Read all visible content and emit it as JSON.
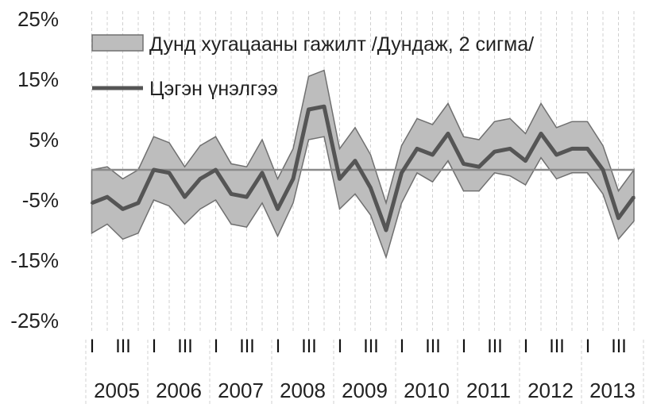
{
  "chart_data": {
    "type": "area",
    "title": "",
    "xlabel": "",
    "ylabel": "",
    "ylim": [
      -25,
      25
    ],
    "y_ticks": [
      "25%",
      "15%",
      "5%",
      "-5%",
      "-15%",
      "-25%"
    ],
    "y_tick_values": [
      25,
      15,
      5,
      -5,
      -15,
      -25
    ],
    "grid": "vertical dashed",
    "legend_position": "top-left",
    "quarter_labels": [
      "I",
      "III"
    ],
    "years": [
      "2005",
      "2006",
      "2007",
      "2008",
      "2009",
      "2010",
      "2011",
      "2012",
      "2013"
    ],
    "x": [
      "2005Q1",
      "2005Q2",
      "2005Q3",
      "2005Q4",
      "2006Q1",
      "2006Q2",
      "2006Q3",
      "2006Q4",
      "2007Q1",
      "2007Q2",
      "2007Q3",
      "2007Q4",
      "2008Q1",
      "2008Q2",
      "2008Q3",
      "2008Q4",
      "2009Q1",
      "2009Q2",
      "2009Q3",
      "2009Q4",
      "2010Q1",
      "2010Q2",
      "2010Q3",
      "2010Q4",
      "2011Q1",
      "2011Q2",
      "2011Q3",
      "2011Q4",
      "2012Q1",
      "2012Q2",
      "2012Q3",
      "2012Q4",
      "2013Q1",
      "2013Q2",
      "2013Q3",
      "2013Q4"
    ],
    "series": [
      {
        "name": "Дунд хугацааны гажилт /Дундаж, 2 сигма/",
        "kind": "band",
        "upper": [
          0,
          0.5,
          -1.5,
          0,
          5.5,
          4.5,
          0.5,
          4,
          5.5,
          1,
          0.5,
          5,
          -1.5,
          3.5,
          15.5,
          16.5,
          3.5,
          7,
          2.5,
          -5.5,
          4,
          8.5,
          7.5,
          11,
          5.5,
          5,
          8,
          8.5,
          6,
          11,
          7,
          8,
          8,
          4,
          -3.5,
          0
        ],
        "lower": [
          -10.5,
          -9,
          -11.5,
          -10.5,
          -5,
          -6,
          -9,
          -6.5,
          -5,
          -9,
          -9.5,
          -5.5,
          -11,
          -5.5,
          5,
          5.5,
          -6.5,
          -4,
          -7.5,
          -14.5,
          -5.5,
          -0.5,
          -2,
          1.5,
          -3.5,
          -3.5,
          -0.5,
          -1,
          -2.5,
          2,
          -1.5,
          -0.5,
          -0.5,
          -4,
          -11.5,
          -8.5
        ]
      },
      {
        "name": "Цэгэн үнэлгээ",
        "kind": "line",
        "values": [
          -5.5,
          -4.5,
          -6.5,
          -5.5,
          0,
          -0.5,
          -4.5,
          -1.5,
          0,
          -4,
          -4.5,
          -0.5,
          -6.5,
          -1.5,
          10,
          10.5,
          -1.5,
          1.5,
          -3,
          -10,
          -0.5,
          3.5,
          2.5,
          6,
          1,
          0.5,
          3,
          3.5,
          1.5,
          6,
          2.5,
          3.5,
          3.5,
          0,
          -8,
          -4.5
        ]
      }
    ],
    "reference_line": 0
  }
}
